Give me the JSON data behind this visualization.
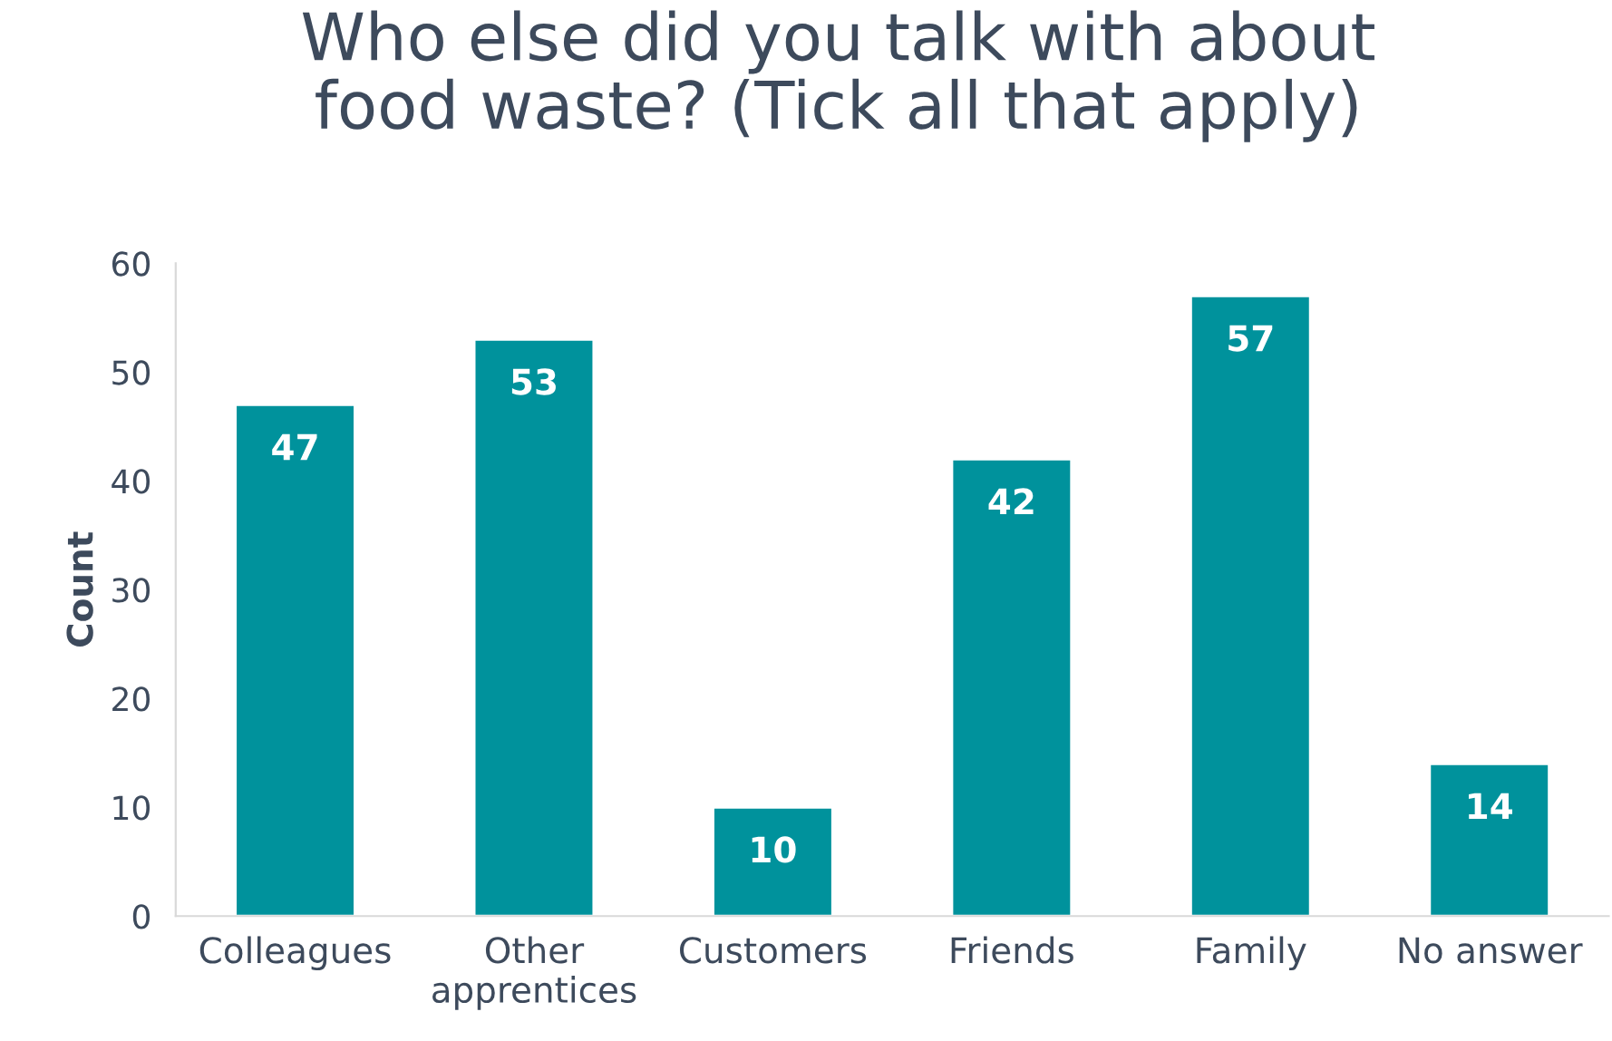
{
  "chart_data": {
    "type": "bar",
    "title": "Who else did you talk with about\nfood waste? (Tick all that apply)",
    "ylabel": "Count",
    "categories": [
      "Colleagues",
      "Other\napprentices",
      "Customers",
      "Friends",
      "Family",
      "No answer"
    ],
    "values": [
      47,
      53,
      10,
      42,
      57,
      14
    ],
    "color": "#00929c",
    "ylim": [
      0,
      60
    ],
    "yticks": [
      0,
      10,
      20,
      30,
      40,
      50,
      60
    ],
    "grid": false,
    "data_labels": true
  }
}
